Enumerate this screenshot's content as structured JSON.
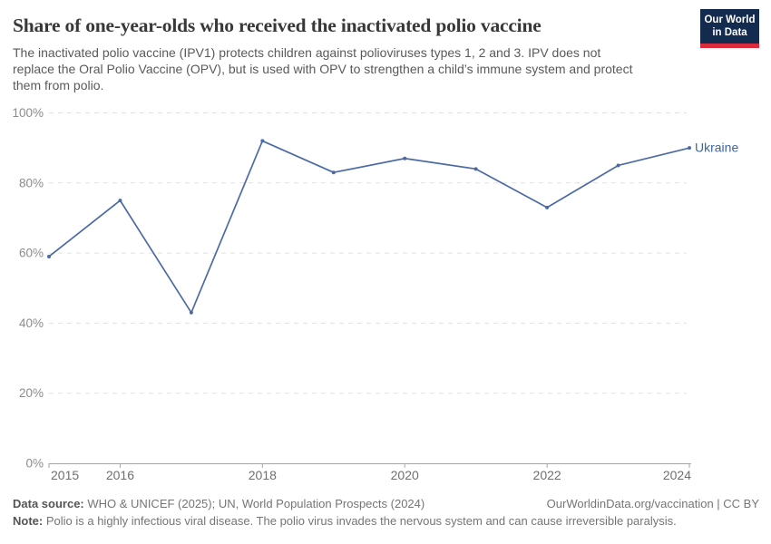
{
  "header": {
    "title": "Share of one-year-olds who received the inactivated polio vaccine",
    "subtitle_lines": [
      "The inactivated polio vaccine (IPV1) protects children against polioviruses types 1, 2 and 3. IPV does not",
      "replace the Oral Polio Vaccine (OPV), but is used with OPV to strengthen a child’s immune system and protect",
      "them from polio."
    ],
    "logo": {
      "line1": "Our World",
      "line2": "in Data"
    }
  },
  "chart_data": {
    "type": "line",
    "title": "Share of one-year-olds who received the inactivated polio vaccine",
    "x": [
      2015,
      2016,
      2017,
      2018,
      2019,
      2020,
      2021,
      2022,
      2023,
      2024
    ],
    "series": [
      {
        "name": "Ukraine",
        "values": [
          59,
          75,
          43,
          92,
          83,
          87,
          84,
          73,
          85,
          90
        ]
      }
    ],
    "end_label": "Ukraine",
    "ylim": [
      0,
      100
    ],
    "yticks": [
      0,
      20,
      40,
      60,
      80,
      100
    ],
    "ytick_suffix": "%",
    "xticks": [
      2015,
      2016,
      2018,
      2020,
      2022,
      2024
    ],
    "grid": "dashed horizontal",
    "legend_position": "end-of-line label"
  },
  "colors": {
    "line": "#4C6BA5",
    "end_label": "#41659F",
    "grid": "#E1E1E1",
    "axis": "#A6A6A6",
    "y_tick_label": "#8C8C8C",
    "x_tick_label": "#6F6F6F",
    "title": "#383838",
    "subtitle": "#5A5A5A",
    "logo_bg": "#122B4E",
    "logo_accent": "#DC2C3C"
  },
  "footer": {
    "source_label": "Data source:",
    "source_text": "WHO & UNICEF (2025); UN, World Population Prospects (2024)",
    "license_text": "OurWorldinData.org/vaccination | CC BY",
    "note_label": "Note:",
    "note_text": "Polio is a highly infectious viral disease. The polio virus invades the nervous system and can cause irreversible paralysis."
  }
}
